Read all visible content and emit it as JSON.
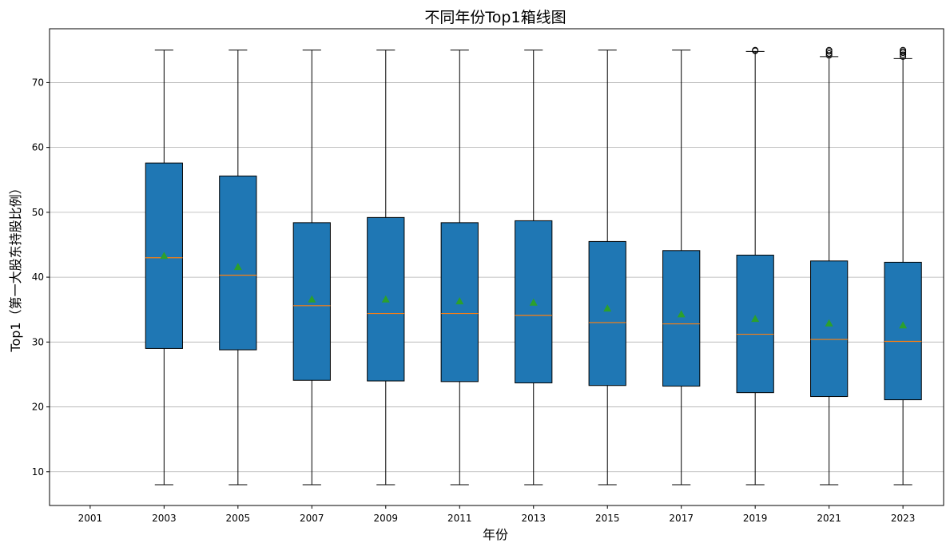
{
  "chart_data": {
    "type": "boxplot",
    "title": "不同年份Top1箱线图",
    "xlabel": "年份",
    "ylabel": "Top1（第一大股东持股比例）",
    "categories": [
      "2001",
      "2003",
      "2005",
      "2007",
      "2009",
      "2011",
      "2013",
      "2015",
      "2017",
      "2019",
      "2021",
      "2023"
    ],
    "ylim": [
      4.8,
      78.3
    ],
    "yticks": [
      10,
      20,
      30,
      40,
      50,
      60,
      70
    ],
    "grid": "y",
    "colors": {
      "box": "#1f77b4",
      "median": "#ff7f0e",
      "mean": "#2ca02c"
    },
    "boxes": [
      {
        "year": "2001",
        "empty": true
      },
      {
        "year": "2003",
        "whislo": 8,
        "q1": 29.0,
        "median": 43.0,
        "q3": 57.6,
        "whishi": 75,
        "mean": 43.3,
        "fliers": []
      },
      {
        "year": "2005",
        "whislo": 8,
        "q1": 28.8,
        "median": 40.3,
        "q3": 55.6,
        "whishi": 75,
        "mean": 41.6,
        "fliers": []
      },
      {
        "year": "2007",
        "whislo": 8,
        "q1": 24.1,
        "median": 35.6,
        "q3": 48.4,
        "whishi": 75,
        "mean": 36.6,
        "fliers": []
      },
      {
        "year": "2009",
        "whislo": 8,
        "q1": 24.0,
        "median": 34.4,
        "q3": 49.2,
        "whishi": 75,
        "mean": 36.6,
        "fliers": []
      },
      {
        "year": "2011",
        "whislo": 8,
        "q1": 23.9,
        "median": 34.4,
        "q3": 48.4,
        "whishi": 75,
        "mean": 36.3,
        "fliers": []
      },
      {
        "year": "2013",
        "whislo": 8,
        "q1": 23.7,
        "median": 34.1,
        "q3": 48.7,
        "whishi": 75,
        "mean": 36.1,
        "fliers": []
      },
      {
        "year": "2015",
        "whislo": 8,
        "q1": 23.3,
        "median": 33.0,
        "q3": 45.5,
        "whishi": 75,
        "mean": 35.2,
        "fliers": []
      },
      {
        "year": "2017",
        "whislo": 8,
        "q1": 23.2,
        "median": 32.8,
        "q3": 44.1,
        "whishi": 75,
        "mean": 34.3,
        "fliers": []
      },
      {
        "year": "2019",
        "whislo": 8,
        "q1": 22.2,
        "median": 31.2,
        "q3": 43.4,
        "whishi": 74.8,
        "mean": 33.6,
        "fliers": [
          74.9,
          75.0
        ]
      },
      {
        "year": "2021",
        "whislo": 8,
        "q1": 21.6,
        "median": 30.4,
        "q3": 42.5,
        "whishi": 74.0,
        "mean": 32.9,
        "fliers": [
          74.2,
          74.5,
          74.8,
          75.0
        ]
      },
      {
        "year": "2023",
        "whislo": 8,
        "q1": 21.1,
        "median": 30.1,
        "q3": 42.3,
        "whishi": 73.7,
        "mean": 32.6,
        "fliers": [
          74.0,
          74.3,
          74.6,
          74.8,
          75.0
        ]
      }
    ]
  }
}
